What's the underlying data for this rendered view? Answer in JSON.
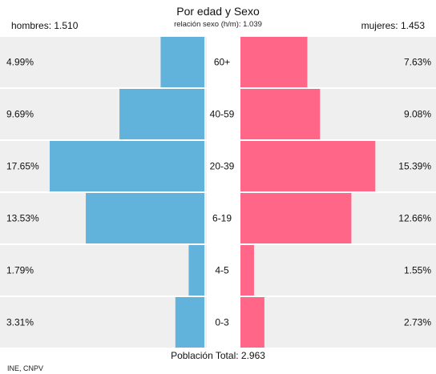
{
  "header": {
    "title": "Por edad y Sexo",
    "subtitle": "relación sexo (h/m): 1.039",
    "men_label": "hombres: 1.510",
    "women_label": "mujeres: 1.453"
  },
  "footer": {
    "total": "Población Total: 2.963",
    "source": "INE, CNPV"
  },
  "chart_data": {
    "type": "bar",
    "orientation": "horizontal-pyramid",
    "categories": [
      "60+",
      "40-59",
      "20-39",
      "6-19",
      "4-5",
      "0-3"
    ],
    "series": [
      {
        "name": "hombres",
        "values": [
          4.99,
          9.69,
          17.65,
          13.53,
          1.79,
          3.31
        ],
        "labels": [
          "4.99%",
          "9.69%",
          "17.65%",
          "13.53%",
          "1.79%",
          "3.31%"
        ],
        "color": "#62b3db"
      },
      {
        "name": "mujeres",
        "values": [
          7.63,
          9.08,
          15.39,
          12.66,
          1.55,
          2.73
        ],
        "labels": [
          "7.63%",
          "9.08%",
          "15.39%",
          "12.66%",
          "1.55%",
          "2.73%"
        ],
        "color": "#ff6688"
      }
    ],
    "xlim": [
      0,
      17.65
    ],
    "units": "%",
    "grid": true
  }
}
